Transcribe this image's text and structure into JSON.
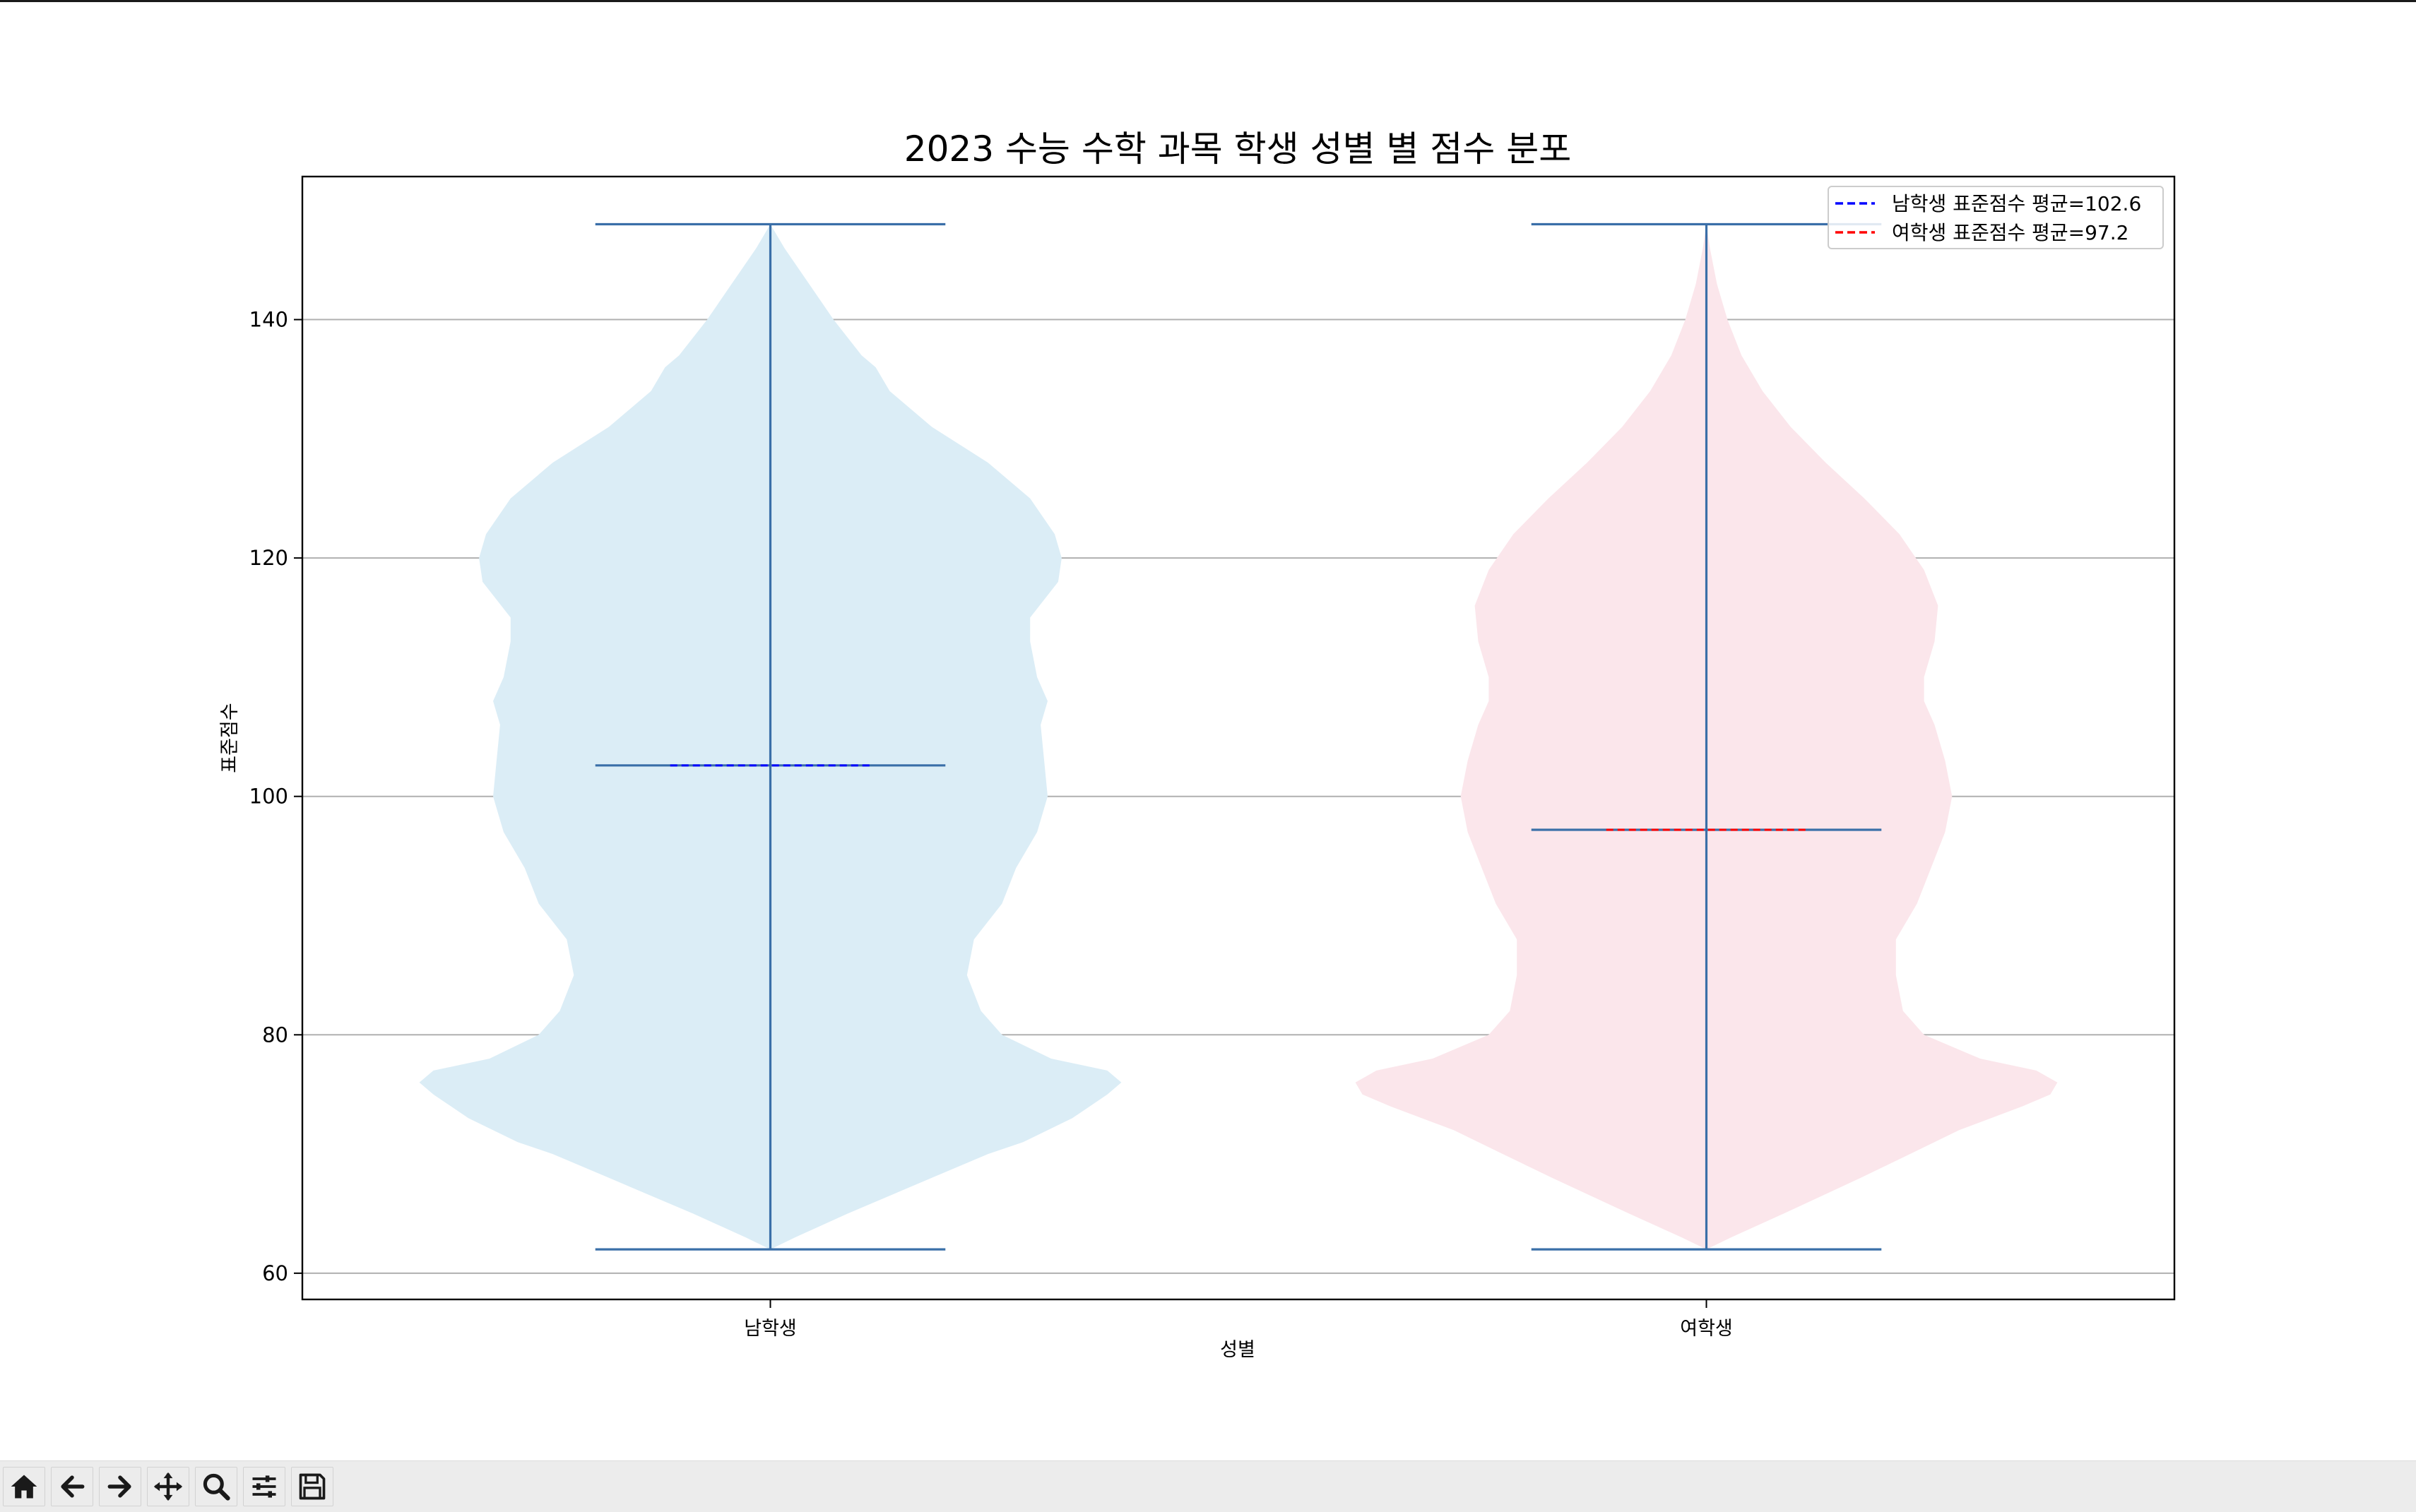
{
  "chart_data": {
    "type": "violin",
    "title": "2023 수능 수학 과목 학생 성별 별 점수 분포",
    "xlabel": "성별",
    "ylabel": "표준점수",
    "categories": [
      "남학생",
      "여학생"
    ],
    "ylim": [
      57.8,
      152
    ],
    "yticks": [
      60,
      80,
      100,
      120,
      140
    ],
    "grid": "y",
    "legend_position": "top-right",
    "series": [
      {
        "name": "남학생",
        "min": 62,
        "max": 148,
        "mean": 102.6,
        "fill_color": "#dbedf6",
        "mean_line_color": "#0000ff",
        "mean_label": "남학생 표준점수 평균=102.6",
        "density": [
          [
            62,
            0.0
          ],
          [
            63,
            0.07
          ],
          [
            65,
            0.22
          ],
          [
            68,
            0.46
          ],
          [
            70,
            0.62
          ],
          [
            71,
            0.72
          ],
          [
            73,
            0.86
          ],
          [
            75,
            0.96
          ],
          [
            76,
            1.0
          ],
          [
            77,
            0.96
          ],
          [
            78,
            0.8
          ],
          [
            80,
            0.66
          ],
          [
            82,
            0.6
          ],
          [
            85,
            0.56
          ],
          [
            88,
            0.58
          ],
          [
            91,
            0.66
          ],
          [
            94,
            0.7
          ],
          [
            97,
            0.76
          ],
          [
            100,
            0.79
          ],
          [
            103,
            0.78
          ],
          [
            106,
            0.77
          ],
          [
            108,
            0.79
          ],
          [
            110,
            0.76
          ],
          [
            113,
            0.74
          ],
          [
            115,
            0.74
          ],
          [
            118,
            0.82
          ],
          [
            120,
            0.83
          ],
          [
            122,
            0.81
          ],
          [
            125,
            0.74
          ],
          [
            128,
            0.62
          ],
          [
            131,
            0.46
          ],
          [
            134,
            0.34
          ],
          [
            136,
            0.3
          ],
          [
            137,
            0.26
          ],
          [
            140,
            0.18
          ],
          [
            143,
            0.11
          ],
          [
            146,
            0.04
          ],
          [
            148,
            0.0
          ]
        ]
      },
      {
        "name": "여학생",
        "min": 62,
        "max": 148,
        "mean": 97.2,
        "fill_color": "#fbe6eb",
        "mean_line_color": "#ff0000",
        "mean_label": "여학생 표준점수 평균=97.2",
        "density": [
          [
            62,
            0.0
          ],
          [
            63,
            0.07
          ],
          [
            65,
            0.22
          ],
          [
            68,
            0.44
          ],
          [
            70,
            0.58
          ],
          [
            72,
            0.72
          ],
          [
            74,
            0.9
          ],
          [
            75,
            0.98
          ],
          [
            76,
            1.0
          ],
          [
            77,
            0.94
          ],
          [
            78,
            0.78
          ],
          [
            80,
            0.62
          ],
          [
            82,
            0.56
          ],
          [
            85,
            0.54
          ],
          [
            88,
            0.54
          ],
          [
            91,
            0.6
          ],
          [
            94,
            0.64
          ],
          [
            97,
            0.68
          ],
          [
            100,
            0.7
          ],
          [
            103,
            0.68
          ],
          [
            106,
            0.65
          ],
          [
            108,
            0.62
          ],
          [
            110,
            0.62
          ],
          [
            113,
            0.65
          ],
          [
            116,
            0.66
          ],
          [
            119,
            0.62
          ],
          [
            122,
            0.55
          ],
          [
            125,
            0.45
          ],
          [
            128,
            0.34
          ],
          [
            131,
            0.24
          ],
          [
            134,
            0.16
          ],
          [
            137,
            0.1
          ],
          [
            140,
            0.06
          ],
          [
            143,
            0.03
          ],
          [
            146,
            0.01
          ],
          [
            148,
            0.0
          ]
        ]
      }
    ],
    "colors": {
      "body_line": "#3a6fa8",
      "grid": "#b0b0b0",
      "axes": "#000000"
    }
  },
  "toolbar": {
    "buttons": [
      {
        "name": "home-icon"
      },
      {
        "name": "back-arrow-icon"
      },
      {
        "name": "forward-arrow-icon"
      },
      {
        "name": "pan-icon"
      },
      {
        "name": "zoom-icon"
      },
      {
        "name": "configure-subplots-icon"
      },
      {
        "name": "save-icon"
      }
    ]
  }
}
